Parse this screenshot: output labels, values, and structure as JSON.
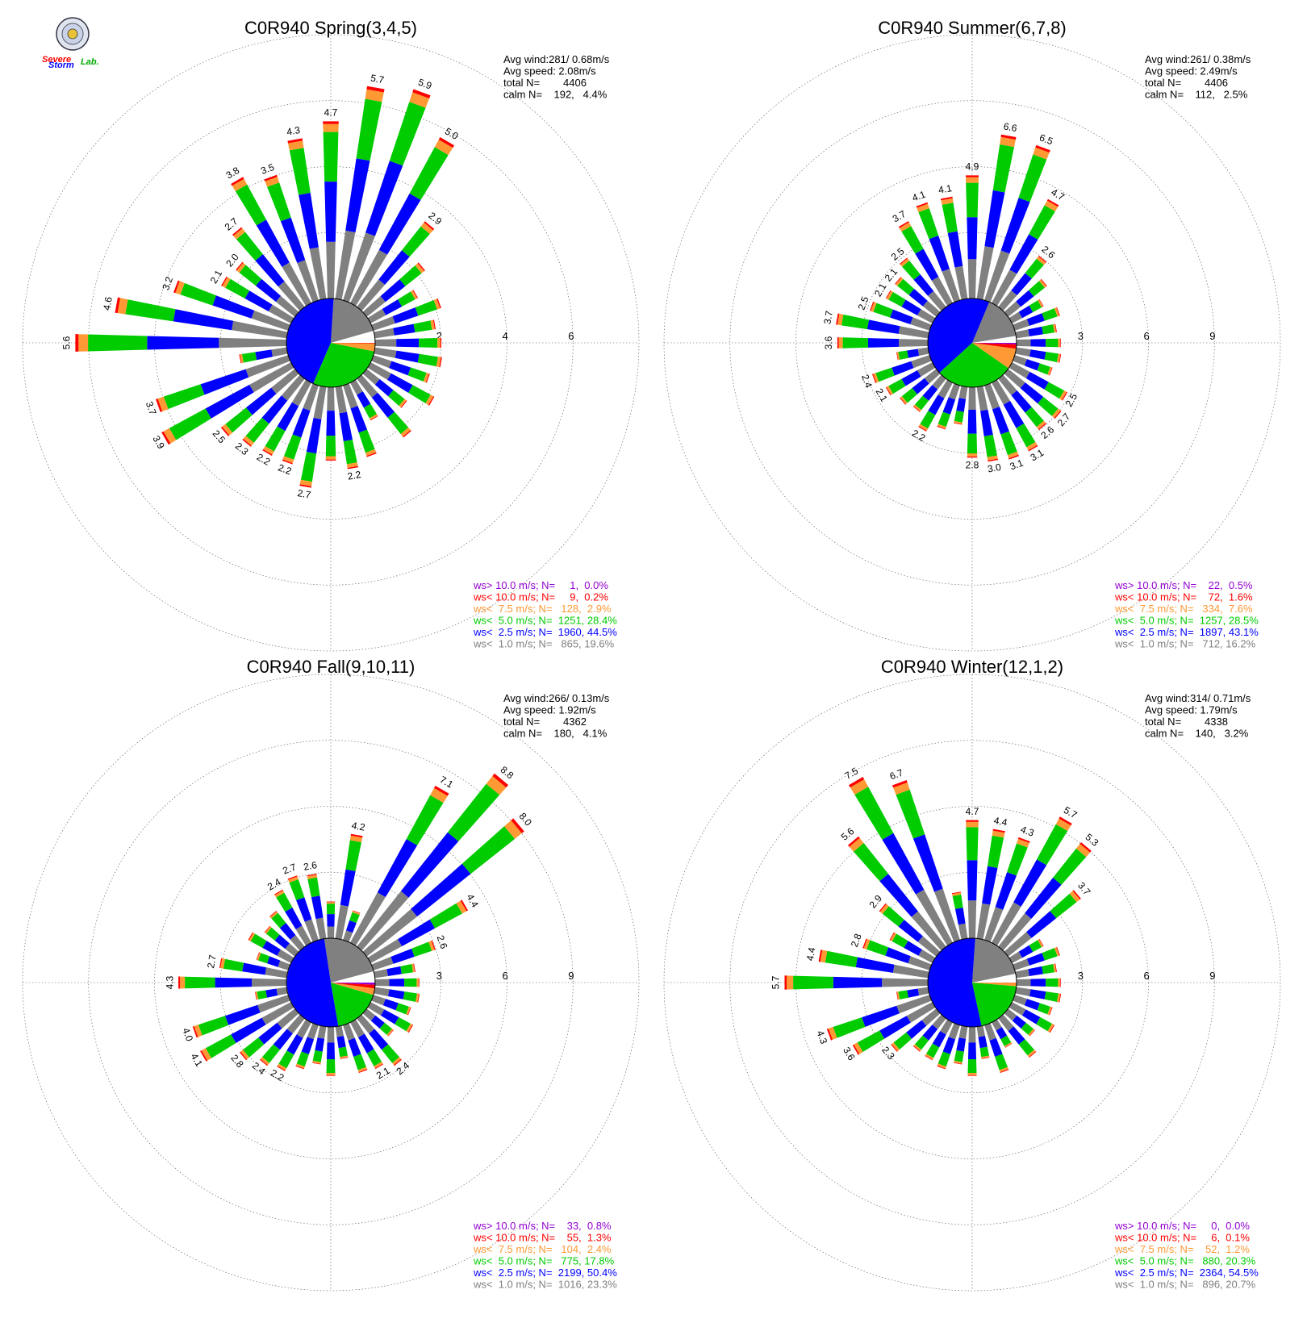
{
  "logo": {
    "text_a": "Severe",
    "text_b": "Storm",
    "text_c": "Lab."
  },
  "colors": {
    "gt10": "#9400d3",
    "lt10": "#ff0000",
    "lt7_5": "#ff9933",
    "lt5": "#00cc00",
    "lt2_5": "#0000ff",
    "lt1": "#808080",
    "calm": "#ffffff",
    "grid": "#555555"
  },
  "chart_data": [
    {
      "type": "windrose",
      "title": "C0R940 Spring(3,4,5)",
      "stats": [
        "Avg wind:281/ 0.68m/s",
        "Avg speed: 2.08m/s",
        "total N=        4406",
        "calm N=    192,   4.4%"
      ],
      "rings": [
        "2",
        "4",
        "6"
      ],
      "rmax": 7,
      "dirs": [
        "5.6",
        "4.6",
        "3.2",
        "2.1",
        "2.0",
        "2.7",
        "3.8",
        "3.5",
        "4.3",
        "4.7",
        "5.7",
        "5.9",
        "5.0",
        "2.9",
        "",
        "",
        "",
        "",
        "",
        "",
        "",
        "",
        "",
        "",
        "",
        "",
        "2.2",
        "",
        "2.7",
        "2.2",
        "2.2",
        "2.3",
        "2.5",
        "3.9",
        "3.7",
        ""
      ],
      "legend": [
        {
          "key": "gt10",
          "text": "ws> 10.0 m/s; N=     1,  0.0%"
        },
        {
          "key": "lt10",
          "text": "ws< 10.0 m/s; N=     9,  0.2%"
        },
        {
          "key": "lt7_5",
          "text": "ws<  7.5 m/s; N=   128,  2.9%"
        },
        {
          "key": "lt5",
          "text": "ws<  5.0 m/s; N=  1251, 28.4%"
        },
        {
          "key": "lt2_5",
          "text": "ws<  2.5 m/s; N=  1960, 44.5%"
        },
        {
          "key": "lt1",
          "text": "ws<  1.0 m/s; N=   865, 19.6%"
        }
      ],
      "pie": [
        4.4,
        19.6,
        44.5,
        28.4,
        2.9,
        0.2,
        0.0
      ]
    },
    {
      "type": "windrose",
      "title": "C0R940 Summer(6,7,8)",
      "stats": [
        "Avg wind:261/ 0.38m/s",
        "Avg speed: 2.49m/s",
        "total N=        4406",
        "calm N=    112,   2.5%"
      ],
      "rings": [
        "3",
        "6",
        "9"
      ],
      "rmax": 10.5,
      "dirs": [
        "3.6",
        "3.7",
        "2.5",
        "2.1",
        "2.1",
        "2.5",
        "3.7",
        "4.1",
        "4.1",
        "4.9",
        "6.6",
        "6.5",
        "4.7",
        "2.6",
        "",
        "",
        "",
        "",
        "",
        "",
        "",
        "2.5",
        "2.7",
        "2.6",
        "3.1",
        "3.1",
        "3.0",
        "2.8",
        "",
        "",
        "2.2",
        "",
        "",
        "2.1",
        "2.4",
        ""
      ],
      "legend": [
        {
          "key": "gt10",
          "text": "ws> 10.0 m/s; N=    22,  0.5%"
        },
        {
          "key": "lt10",
          "text": "ws< 10.0 m/s; N=    72,  1.6%"
        },
        {
          "key": "lt7_5",
          "text": "ws<  7.5 m/s; N=   334,  7.6%"
        },
        {
          "key": "lt5",
          "text": "ws<  5.0 m/s; N=  1257, 28.5%"
        },
        {
          "key": "lt2_5",
          "text": "ws<  2.5 m/s; N=  1897, 43.1%"
        },
        {
          "key": "lt1",
          "text": "ws<  1.0 m/s; N=   712, 16.2%"
        }
      ],
      "pie": [
        2.5,
        16.2,
        43.1,
        28.5,
        7.6,
        1.6,
        0.5
      ]
    },
    {
      "type": "windrose",
      "title": "C0R940 Fall(9,10,11)",
      "stats": [
        "Avg wind:266/ 0.13m/s",
        "Avg speed: 1.92m/s",
        "total N=        4362",
        "calm N=    180,   4.1%"
      ],
      "rings": [
        "3",
        "6",
        "9"
      ],
      "rmax": 10.5,
      "dirs": [
        "4.3",
        "2.7",
        "",
        "",
        "",
        "",
        "2.4",
        "2.7",
        "2.6",
        "",
        "4.2",
        "",
        "7.1",
        "8.8",
        "8.0",
        "4.4",
        "2.6",
        "",
        "",
        "",
        "",
        "",
        "",
        "2.4",
        "2.1",
        "",
        "",
        "",
        "",
        "",
        "2.2",
        "2.4",
        "2.8",
        "4.1",
        "4.0",
        ""
      ],
      "legend": [
        {
          "key": "gt10",
          "text": "ws> 10.0 m/s; N=    33,  0.8%"
        },
        {
          "key": "lt10",
          "text": "ws< 10.0 m/s; N=    55,  1.3%"
        },
        {
          "key": "lt7_5",
          "text": "ws<  7.5 m/s; N=   104,  2.4%"
        },
        {
          "key": "lt5",
          "text": "ws<  5.0 m/s; N=   775, 17.8%"
        },
        {
          "key": "lt2_5",
          "text": "ws<  2.5 m/s; N=  2199, 50.4%"
        },
        {
          "key": "lt1",
          "text": "ws<  1.0 m/s; N=  1016, 23.3%"
        }
      ],
      "pie": [
        4.1,
        23.3,
        50.4,
        17.8,
        2.4,
        1.3,
        0.8
      ]
    },
    {
      "type": "windrose",
      "title": "C0R940 Winter(12,1,2)",
      "stats": [
        "Avg wind:314/ 0.71m/s",
        "Avg speed: 1.79m/s",
        "total N=        4338",
        "calm N=    140,   3.2%"
      ],
      "rings": [
        "3",
        "6",
        "9"
      ],
      "rmax": 10.5,
      "dirs": [
        "5.7",
        "4.4",
        "2.8",
        "",
        "2.9",
        "5.6",
        "7.5",
        "6.7",
        "",
        "4.7",
        "4.4",
        "4.3",
        "5.7",
        "5.3",
        "3.7",
        "",
        "",
        "",
        "",
        "",
        "",
        "",
        "",
        "",
        "",
        "",
        "",
        "",
        "",
        "",
        "",
        "",
        "2.3",
        "3.6",
        "4.3",
        ""
      ],
      "legend": [
        {
          "key": "gt10",
          "text": "ws> 10.0 m/s; N=     0,  0.0%"
        },
        {
          "key": "lt10",
          "text": "ws< 10.0 m/s; N=     6,  0.1%"
        },
        {
          "key": "lt7_5",
          "text": "ws<  7.5 m/s; N=    52,  1.2%"
        },
        {
          "key": "lt5",
          "text": "ws<  5.0 m/s; N=   880, 20.3%"
        },
        {
          "key": "lt2_5",
          "text": "ws<  2.5 m/s; N=  2364, 54.5%"
        },
        {
          "key": "lt1",
          "text": "ws<  1.0 m/s; N=   896, 20.7%"
        }
      ],
      "pie": [
        3.2,
        20.7,
        54.5,
        20.3,
        1.2,
        0.1,
        0.0
      ]
    }
  ]
}
